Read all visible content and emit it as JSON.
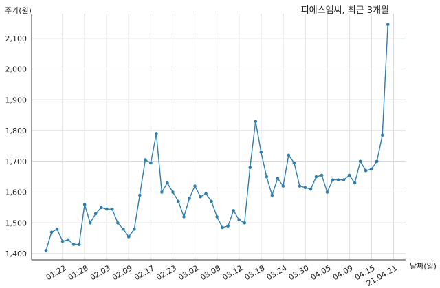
{
  "chart_data": {
    "type": "line",
    "title": "피에스엠씨, 최근 3개월",
    "ylabel": "주가(원)",
    "xlabel": "날짜(일)",
    "ylim": [
      1380,
      2180
    ],
    "yticks": [
      1400,
      1500,
      1600,
      1700,
      1800,
      1900,
      2000,
      2100
    ],
    "ytick_labels": [
      "1,400",
      "1,500",
      "1,600",
      "1,700",
      "1,800",
      "1,900",
      "2,000",
      "2,100"
    ],
    "xticks": [
      {
        "i": 3,
        "label": "01.22"
      },
      {
        "i": 7,
        "label": "01.28"
      },
      {
        "i": 11,
        "label": "02.03"
      },
      {
        "i": 15,
        "label": "02.09"
      },
      {
        "i": 19,
        "label": "02.17"
      },
      {
        "i": 23,
        "label": "02.23"
      },
      {
        "i": 27,
        "label": "03.02"
      },
      {
        "i": 31,
        "label": "03.08"
      },
      {
        "i": 35,
        "label": "03.12"
      },
      {
        "i": 39,
        "label": "03.18"
      },
      {
        "i": 43,
        "label": "03.24"
      },
      {
        "i": 47,
        "label": "03.30"
      },
      {
        "i": 51,
        "label": "04.05"
      },
      {
        "i": 55,
        "label": "04.09"
      },
      {
        "i": 59,
        "label": "04.15"
      },
      {
        "i": 63,
        "label": "21.04.21"
      }
    ],
    "grid": true,
    "series": [
      {
        "color": "#2e7fb0",
        "values": [
          1410,
          1470,
          1480,
          1440,
          1445,
          1430,
          1430,
          1560,
          1500,
          1530,
          1550,
          1545,
          1545,
          1500,
          1480,
          1455,
          1480,
          1590,
          1705,
          1695,
          1790,
          1600,
          1630,
          1600,
          1570,
          1520,
          1580,
          1620,
          1585,
          1595,
          1570,
          1520,
          1485,
          1490,
          1540,
          1510,
          1500,
          1680,
          1830,
          1730,
          1650,
          1590,
          1645,
          1620,
          1720,
          1695,
          1620,
          1615,
          1610,
          1650,
          1655,
          1600,
          1640,
          1640,
          1640,
          1655,
          1630,
          1700,
          1670,
          1675,
          1700,
          1785,
          2145
        ]
      }
    ]
  }
}
